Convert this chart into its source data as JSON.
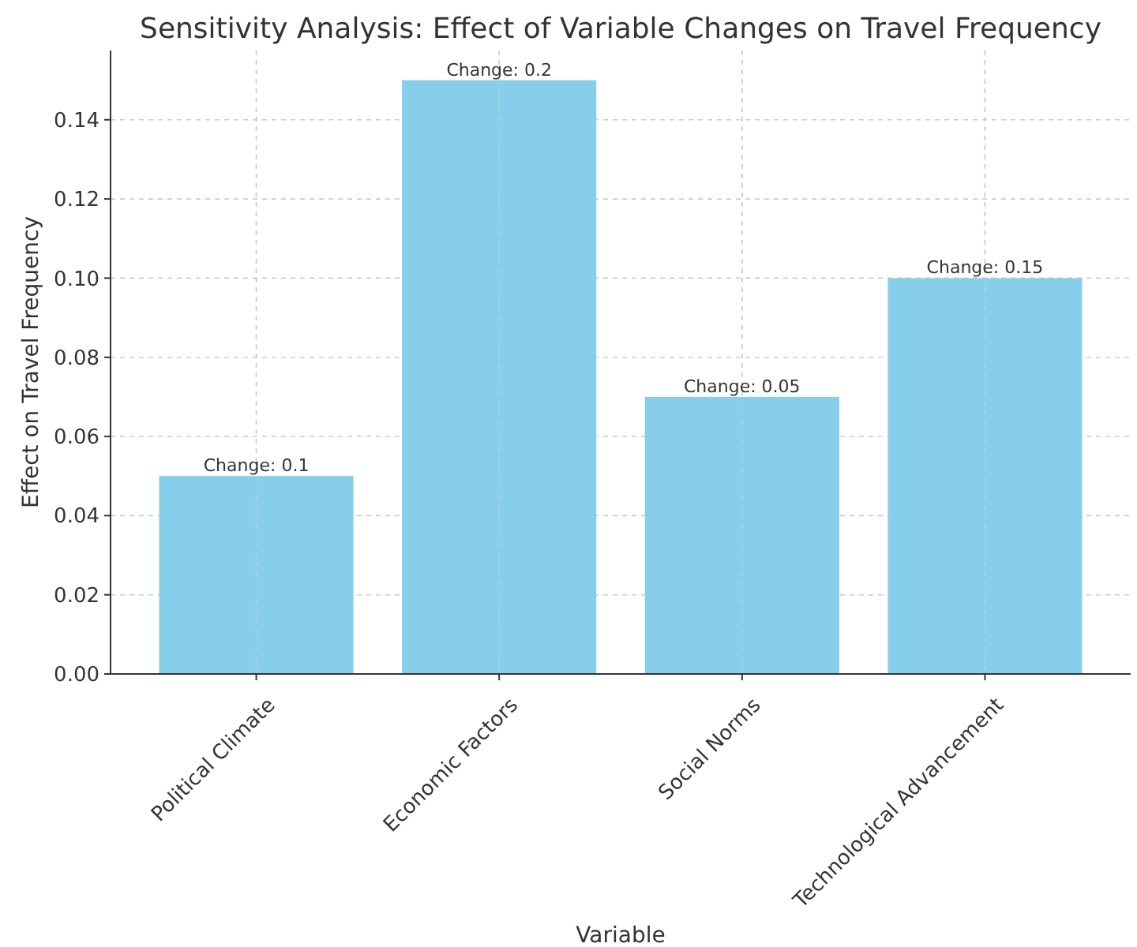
{
  "chart_data": {
    "type": "bar",
    "title": "Sensitivity Analysis: Effect of Variable Changes on Travel Frequency",
    "xlabel": "Variable",
    "ylabel": "Effect on Travel Frequency",
    "categories": [
      "Political Climate",
      "Economic Factors",
      "Social Norms",
      "Technological Advancement"
    ],
    "values": [
      0.05,
      0.15,
      0.07,
      0.1
    ],
    "color": "#87ceeb",
    "annotations": [
      {
        "text": "Change: 0.1",
        "x": "Political Climate",
        "y": 0.05
      },
      {
        "text": "Change: 0.2",
        "x": "Economic Factors",
        "y": 0.15
      },
      {
        "text": "Change: 0.05",
        "x": "Social Norms",
        "y": 0.07
      },
      {
        "text": "Change: 0.15",
        "x": "Technological Advancement",
        "y": 0.1
      }
    ],
    "ylim": [
      0,
      0.1575
    ],
    "yticks": [
      {
        "value": 0,
        "label": "0.00"
      },
      {
        "value": 0.02,
        "label": "0.02"
      },
      {
        "value": 0.04,
        "label": "0.04"
      },
      {
        "value": 0.06,
        "label": "0.06"
      },
      {
        "value": 0.08,
        "label": "0.08"
      },
      {
        "value": 0.1,
        "label": "0.10"
      },
      {
        "value": 0.12,
        "label": "0.12"
      },
      {
        "value": 0.14,
        "label": "0.14"
      }
    ],
    "grid": true
  }
}
